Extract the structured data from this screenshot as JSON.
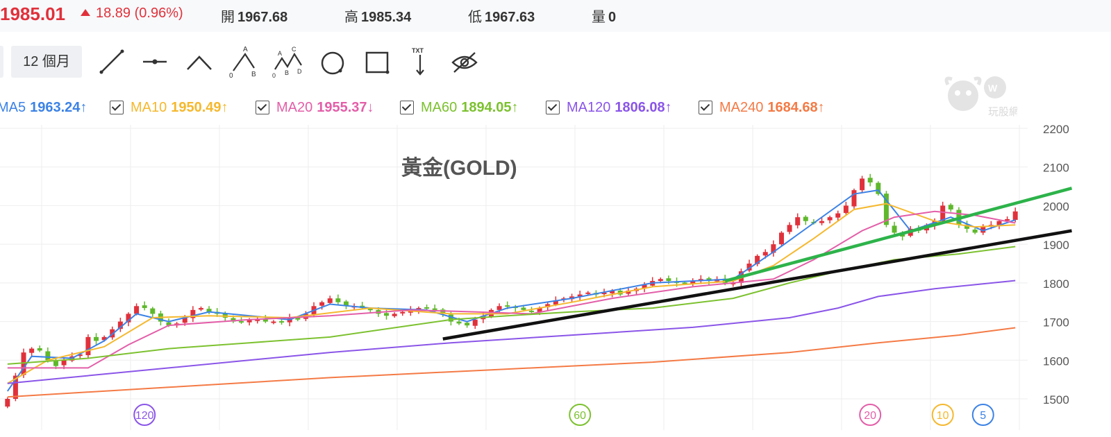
{
  "quote": {
    "price": "1985.01",
    "change": "18.89 (0.96%)",
    "open_label": "開",
    "open": "1967.68",
    "high_label": "高",
    "high": "1985.34",
    "low_label": "低",
    "low": "1967.63",
    "volume_label": "量",
    "volume": "0"
  },
  "toolbar": {
    "period": "12 個月",
    "tools": [
      "line-tool-icon",
      "horizontal-line-tool-icon",
      "angle-tool-icon",
      "abc-pattern-tool-icon",
      "abcd-pattern-tool-icon",
      "circle-tool-icon",
      "rectangle-tool-icon",
      "text-tool-icon",
      "hide-drawings-icon"
    ]
  },
  "ma_legend": [
    {
      "label": "MA5",
      "value": "1963.24↑",
      "color": "#3b82e6"
    },
    {
      "label": "MA10",
      "value": "1950.49↑",
      "color": "#f5b82e"
    },
    {
      "label": "MA20",
      "value": "1955.37↓",
      "color": "#e35ea8"
    },
    {
      "label": "MA60",
      "value": "1894.05↑",
      "color": "#7cc12f"
    },
    {
      "label": "MA120",
      "value": "1806.08↑",
      "color": "#8a55e8"
    },
    {
      "label": "MA240",
      "value": "1684.68↑",
      "color": "#f47a45"
    }
  ],
  "logo_text": "玩股網",
  "chart_data": {
    "type": "line",
    "title": "黃金(GOLD)",
    "y_ticks": [
      "2200",
      "2100",
      "2000",
      "1900",
      "1800",
      "1700",
      "1600",
      "1500"
    ],
    "ylim": [
      1480,
      2200
    ],
    "x_index_range": [
      0,
      125
    ],
    "grid": true,
    "up_color": "#e0313b",
    "down_color": "#5fb82c",
    "period_markers": [
      {
        "label": "120",
        "color": "#8a55e8",
        "x": 17
      },
      {
        "label": "60",
        "color": "#7cc12f",
        "x": 71
      },
      {
        "label": "20",
        "color": "#e35ea8",
        "x": 107
      },
      {
        "label": "10",
        "color": "#f5b82e",
        "x": 116
      },
      {
        "label": "5",
        "color": "#3b82e6",
        "x": 121
      }
    ],
    "candles_close": [
      1500,
      1560,
      1620,
      1630,
      1625,
      1600,
      1585,
      1600,
      1610,
      1615,
      1660,
      1650,
      1660,
      1680,
      1700,
      1720,
      1740,
      1735,
      1720,
      1700,
      1690,
      1695,
      1710,
      1730,
      1735,
      1725,
      1720,
      1710,
      1700,
      1700,
      1705,
      1705,
      1700,
      1700,
      1700,
      1710,
      1705,
      1720,
      1740,
      1750,
      1760,
      1750,
      1740,
      1740,
      1735,
      1730,
      1720,
      1715,
      1720,
      1725,
      1730,
      1735,
      1735,
      1730,
      1720,
      1700,
      1695,
      1690,
      1705,
      1715,
      1730,
      1740,
      1740,
      1735,
      1730,
      1725,
      1735,
      1745,
      1755,
      1760,
      1765,
      1770,
      1775,
      1770,
      1775,
      1780,
      1770,
      1780,
      1785,
      1795,
      1805,
      1810,
      1805,
      1800,
      1800,
      1805,
      1810,
      1805,
      1810,
      1800,
      1800,
      1830,
      1850,
      1870,
      1880,
      1900,
      1930,
      1950,
      1970,
      1960,
      1955,
      1960,
      1970,
      1980,
      2000,
      2040,
      2070,
      2060,
      2030,
      1950,
      1930,
      1920,
      1940,
      1935,
      1950,
      1960,
      2000,
      1990,
      1950,
      1940,
      1930,
      1945,
      1950,
      1960,
      1965,
      1985
    ],
    "series": [
      {
        "name": "MA5",
        "color": "#3b82e6",
        "values": [
          [
            0,
            1520
          ],
          [
            3,
            1610
          ],
          [
            8,
            1605
          ],
          [
            12,
            1650
          ],
          [
            16,
            1720
          ],
          [
            20,
            1700
          ],
          [
            25,
            1725
          ],
          [
            35,
            1705
          ],
          [
            40,
            1745
          ],
          [
            45,
            1735
          ],
          [
            52,
            1730
          ],
          [
            57,
            1700
          ],
          [
            62,
            1735
          ],
          [
            70,
            1760
          ],
          [
            80,
            1800
          ],
          [
            90,
            1810
          ],
          [
            95,
            1880
          ],
          [
            100,
            1955
          ],
          [
            105,
            2030
          ],
          [
            108,
            2040
          ],
          [
            112,
            1935
          ],
          [
            117,
            1970
          ],
          [
            121,
            1935
          ],
          [
            125,
            1963
          ]
        ]
      },
      {
        "name": "MA10",
        "color": "#f5b82e",
        "values": [
          [
            0,
            1540
          ],
          [
            5,
            1600
          ],
          [
            12,
            1635
          ],
          [
            18,
            1710
          ],
          [
            25,
            1715
          ],
          [
            35,
            1710
          ],
          [
            45,
            1735
          ],
          [
            55,
            1720
          ],
          [
            62,
            1720
          ],
          [
            70,
            1750
          ],
          [
            80,
            1790
          ],
          [
            90,
            1805
          ],
          [
            95,
            1845
          ],
          [
            100,
            1915
          ],
          [
            105,
            1990
          ],
          [
            109,
            2005
          ],
          [
            115,
            1960
          ],
          [
            120,
            1945
          ],
          [
            125,
            1950
          ]
        ]
      },
      {
        "name": "MA20",
        "color": "#e35ea8",
        "values": [
          [
            0,
            1580
          ],
          [
            5,
            1580
          ],
          [
            10,
            1580
          ],
          [
            15,
            1640
          ],
          [
            20,
            1690
          ],
          [
            30,
            1705
          ],
          [
            40,
            1715
          ],
          [
            50,
            1730
          ],
          [
            58,
            1725
          ],
          [
            65,
            1720
          ],
          [
            75,
            1760
          ],
          [
            85,
            1790
          ],
          [
            95,
            1810
          ],
          [
            100,
            1860
          ],
          [
            106,
            1935
          ],
          [
            110,
            1970
          ],
          [
            115,
            1985
          ],
          [
            120,
            1975
          ],
          [
            125,
            1955
          ]
        ]
      },
      {
        "name": "MA60",
        "color": "#7cc12f",
        "values": [
          [
            0,
            1590
          ],
          [
            10,
            1605
          ],
          [
            20,
            1630
          ],
          [
            30,
            1645
          ],
          [
            40,
            1660
          ],
          [
            50,
            1690
          ],
          [
            55,
            1705
          ],
          [
            62,
            1715
          ],
          [
            70,
            1725
          ],
          [
            80,
            1735
          ],
          [
            90,
            1760
          ],
          [
            97,
            1800
          ],
          [
            103,
            1830
          ],
          [
            110,
            1860
          ],
          [
            118,
            1875
          ],
          [
            125,
            1894
          ]
        ]
      },
      {
        "name": "MA120",
        "color": "#8a55e8",
        "values": [
          [
            0,
            1540
          ],
          [
            20,
            1580
          ],
          [
            40,
            1620
          ],
          [
            55,
            1645
          ],
          [
            70,
            1665
          ],
          [
            85,
            1685
          ],
          [
            97,
            1710
          ],
          [
            103,
            1735
          ],
          [
            108,
            1765
          ],
          [
            115,
            1785
          ],
          [
            125,
            1806
          ]
        ]
      },
      {
        "name": "MA240",
        "color": "#f47a45",
        "values": [
          [
            0,
            1505
          ],
          [
            20,
            1530
          ],
          [
            40,
            1555
          ],
          [
            60,
            1575
          ],
          [
            80,
            1595
          ],
          [
            97,
            1620
          ],
          [
            108,
            1645
          ],
          [
            118,
            1665
          ],
          [
            125,
            1684
          ]
        ]
      }
    ],
    "trendlines": [
      {
        "color": "#111111",
        "from": [
          54,
          1655
        ],
        "to": [
          132,
          1935
        ]
      },
      {
        "color": "#2db34a",
        "from": [
          89,
          1805
        ],
        "to": [
          132,
          2045
        ]
      }
    ]
  }
}
